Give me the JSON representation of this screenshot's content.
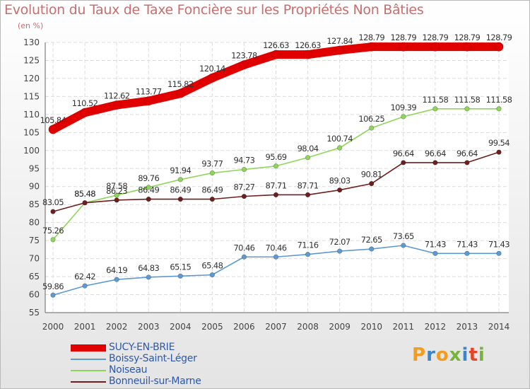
{
  "chart_data": {
    "type": "line",
    "title": "Evolution du Taux de Taxe Foncière sur les Propriétés Non Bâties",
    "subtitle": "(en %)",
    "x": [
      "2000",
      "2001",
      "2002",
      "2003",
      "2004",
      "2005",
      "2006",
      "2007",
      "2008",
      "2009",
      "2010",
      "2011",
      "2012",
      "2013",
      "2014"
    ],
    "ylim": [
      55,
      130
    ],
    "yticks": [
      55,
      60,
      65,
      70,
      75,
      80,
      85,
      90,
      95,
      100,
      105,
      110,
      115,
      120,
      125,
      130
    ],
    "grid": true,
    "legend_position": "bottom-left",
    "series": [
      {
        "name": "SUCY-EN-BRIE",
        "color": "#e00000",
        "labels": [
          "105.84",
          "110.52",
          "112.62",
          "113.77",
          "115.82",
          "120.14",
          "123.78",
          "126.63",
          "126.63",
          "127.84",
          "128.79",
          "128.79",
          "128.79",
          "128.79",
          "128.79"
        ],
        "values": [
          105.84,
          110.52,
          112.62,
          113.77,
          115.82,
          120.14,
          123.78,
          126.63,
          126.63,
          127.84,
          128.79,
          128.79,
          128.79,
          128.79,
          128.79
        ]
      },
      {
        "name": "Boissy-Saint-Léger",
        "color": "#5e9ad2",
        "labels": [
          "59.86",
          "62.42",
          "64.19",
          "64.83",
          "65.15",
          "65.48",
          "70.46",
          "70.46",
          "71.16",
          "72.07",
          "72.65",
          "73.65",
          "71.43",
          "71.43",
          "71.43"
        ],
        "values": [
          59.86,
          62.42,
          64.19,
          64.83,
          65.15,
          65.48,
          70.46,
          70.46,
          71.16,
          72.07,
          72.65,
          73.65,
          71.43,
          71.43,
          71.43
        ]
      },
      {
        "name": "Noiseau",
        "color": "#8ed65a",
        "labels": [
          "75.26",
          "85.48",
          "87.58",
          "89.76",
          "91.94",
          "93.77",
          "94.73",
          "95.69",
          "98.04",
          "100.74",
          "106.25",
          "109.39",
          "111.58",
          "111.58",
          "111.58"
        ],
        "values": [
          75.26,
          85.48,
          87.58,
          89.76,
          91.94,
          93.77,
          94.73,
          95.69,
          98.04,
          100.74,
          106.25,
          109.39,
          111.58,
          111.58,
          111.58
        ]
      },
      {
        "name": "Bonneuil-sur-Marne",
        "color": "#6d1f1f",
        "labels": [
          "83.05",
          "85.48",
          "86.23",
          "86.49",
          "86.49",
          "86.49",
          "87.27",
          "87.71",
          "87.71",
          "89.03",
          "90.81",
          "96.64",
          "96.64",
          "96.64",
          "99.54"
        ],
        "values": [
          83.05,
          85.48,
          86.23,
          86.49,
          86.49,
          86.49,
          87.27,
          87.71,
          87.71,
          89.03,
          90.81,
          96.64,
          96.64,
          96.64,
          99.54
        ]
      }
    ]
  },
  "logo": {
    "text": "Proxiti",
    "colors": [
      "#f39c1f",
      "#3a86c8",
      "#f39c1f",
      "#78b43c",
      "#3a86c8",
      "#e0462c",
      "#78b43c"
    ]
  }
}
